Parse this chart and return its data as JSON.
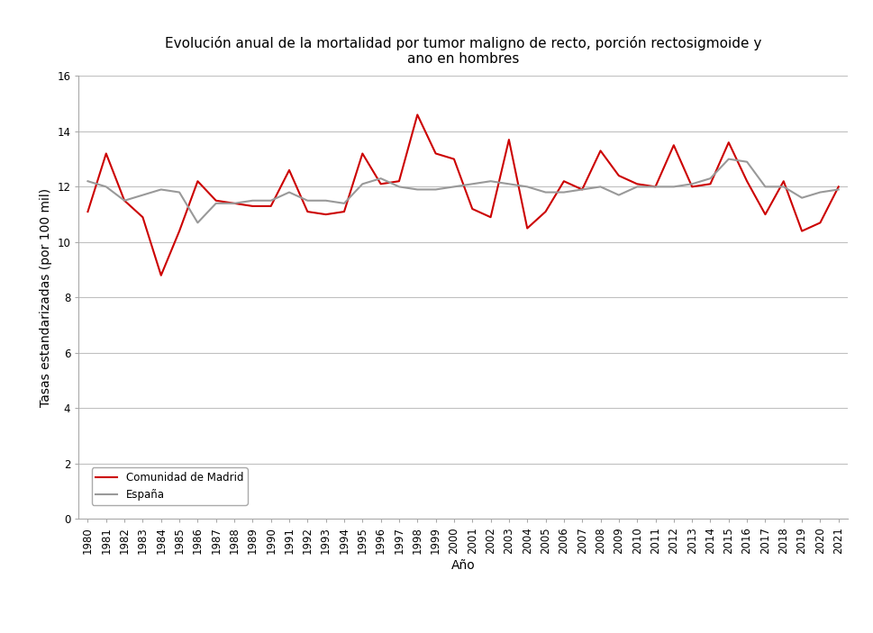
{
  "title": "Evolución anual de la mortalidad por tumor maligno de recto, porción rectosigmoide y\nano en hombres",
  "xlabel": "Año",
  "ylabel": "Tasas estandarizadas (por 100 mil)",
  "years": [
    1980,
    1981,
    1982,
    1983,
    1984,
    1985,
    1986,
    1987,
    1988,
    1989,
    1990,
    1991,
    1992,
    1993,
    1994,
    1995,
    1996,
    1997,
    1998,
    1999,
    2000,
    2001,
    2002,
    2003,
    2004,
    2005,
    2006,
    2007,
    2008,
    2009,
    2010,
    2011,
    2012,
    2013,
    2014,
    2015,
    2016,
    2017,
    2018,
    2019,
    2020,
    2021
  ],
  "madrid": [
    11.1,
    13.2,
    11.5,
    10.9,
    8.8,
    10.4,
    12.2,
    11.5,
    11.4,
    11.3,
    11.3,
    12.6,
    11.1,
    11.0,
    11.1,
    13.2,
    12.1,
    12.2,
    14.6,
    13.2,
    13.0,
    11.2,
    10.9,
    13.7,
    10.5,
    11.1,
    12.2,
    11.9,
    13.3,
    12.4,
    12.1,
    12.0,
    13.5,
    12.0,
    12.1,
    13.6,
    12.2,
    11.0,
    12.2,
    10.4,
    10.7,
    12.0
  ],
  "espana": [
    12.2,
    12.0,
    11.5,
    11.7,
    11.9,
    11.8,
    10.7,
    11.4,
    11.4,
    11.5,
    11.5,
    11.8,
    11.5,
    11.5,
    11.4,
    12.1,
    12.3,
    12.0,
    11.9,
    11.9,
    12.0,
    12.1,
    12.2,
    12.1,
    12.0,
    11.8,
    11.8,
    11.9,
    12.0,
    11.7,
    12.0,
    12.0,
    12.0,
    12.1,
    12.3,
    13.0,
    12.9,
    12.0,
    12.0,
    11.6,
    11.8,
    11.9
  ],
  "madrid_color": "#cc0000",
  "espana_color": "#999999",
  "ylim": [
    0,
    16
  ],
  "yticks": [
    0,
    2,
    4,
    6,
    8,
    10,
    12,
    14,
    16
  ],
  "legend_madrid": "Comunidad de Madrid",
  "legend_espana": "España",
  "bg_color": "#ffffff",
  "grid_color": "#c0c0c0",
  "title_fontsize": 11,
  "label_fontsize": 10,
  "tick_fontsize": 8.5
}
